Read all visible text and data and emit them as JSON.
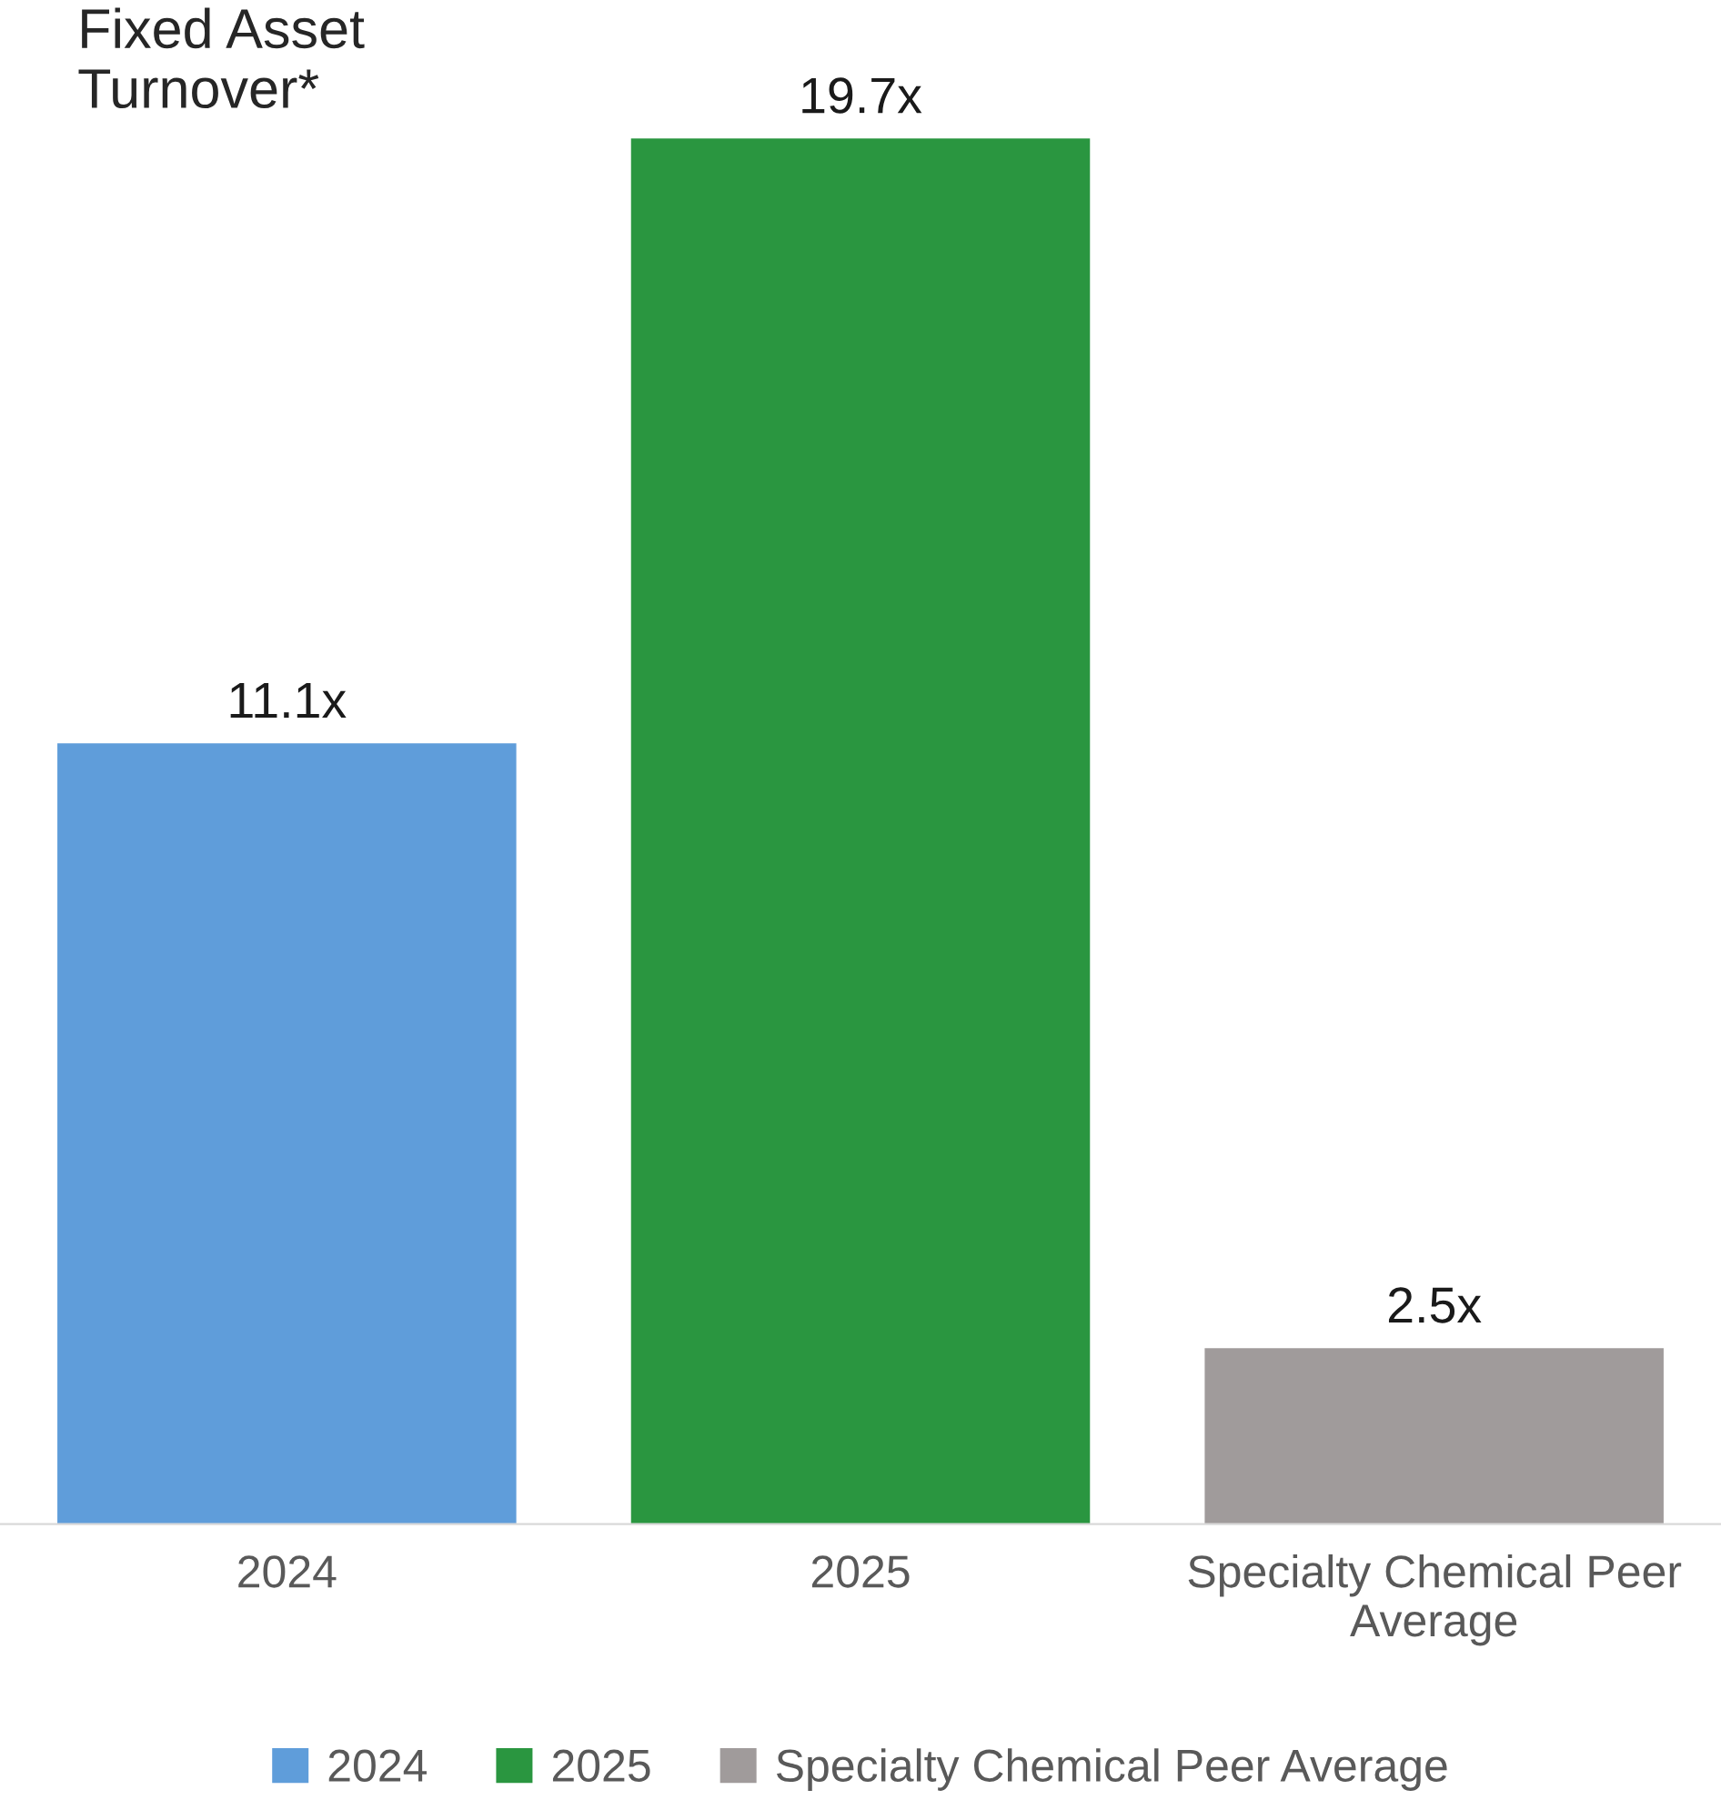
{
  "chart_data": {
    "type": "bar",
    "title": "Fixed Asset\nTurnover*",
    "categories": [
      "2024",
      "2025",
      "Specialty Chemical Peer\nAverage"
    ],
    "series": [
      {
        "name": "2024",
        "color": "#5f9dda",
        "values": [
          11.1,
          null,
          null
        ],
        "value_labels": [
          "11.1x",
          null,
          null
        ]
      },
      {
        "name": "2025",
        "color": "#2a9640",
        "values": [
          null,
          19.7,
          null
        ],
        "value_labels": [
          null,
          "19.7x",
          null
        ]
      },
      {
        "name": "Specialty Chemical Peer Average",
        "color": "#a09b9b",
        "values": [
          null,
          null,
          2.5
        ],
        "value_labels": [
          null,
          null,
          "2.5x"
        ]
      }
    ],
    "grid": false,
    "legend": "bottom"
  }
}
